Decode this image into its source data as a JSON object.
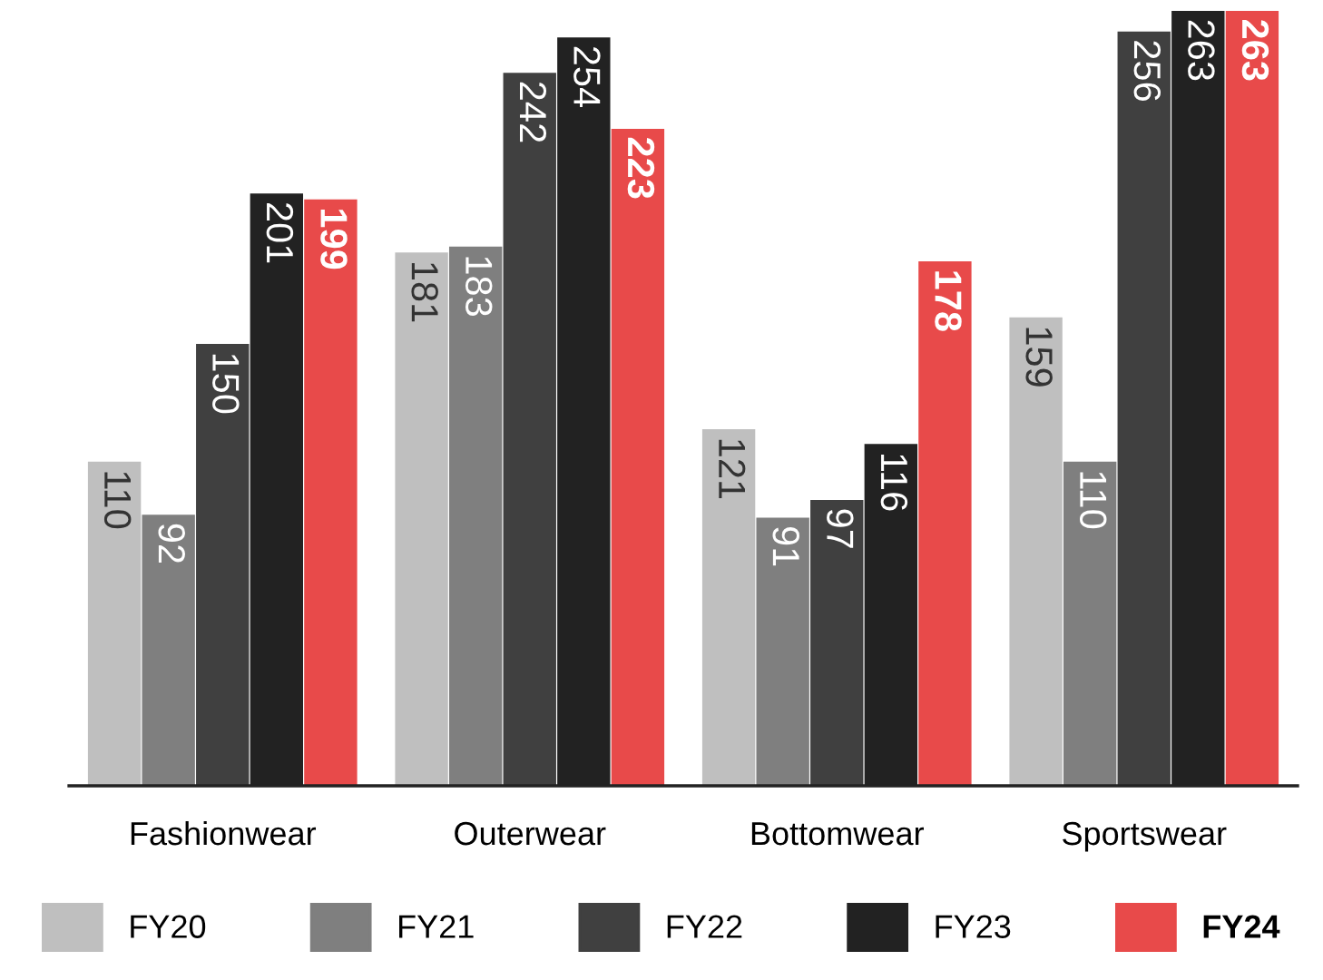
{
  "chart_data": {
    "type": "bar",
    "categories": [
      "Fashionwear",
      "Outerwear",
      "Bottomwear",
      "Sportswear"
    ],
    "series": [
      {
        "name": "FY20",
        "color": "#bfbfbf",
        "values": [
          110,
          181,
          121,
          159
        ]
      },
      {
        "name": "FY21",
        "color": "#7f7f7f",
        "values": [
          92,
          183,
          91,
          110
        ]
      },
      {
        "name": "FY22",
        "color": "#404040",
        "values": [
          150,
          242,
          97,
          256
        ]
      },
      {
        "name": "FY23",
        "color": "#222222",
        "values": [
          201,
          254,
          116,
          263
        ]
      },
      {
        "name": "FY24",
        "color": "#e84a4a",
        "values": [
          199,
          223,
          178,
          263
        ]
      }
    ],
    "data_labels": true,
    "legend": "bottom",
    "grid": false
  }
}
